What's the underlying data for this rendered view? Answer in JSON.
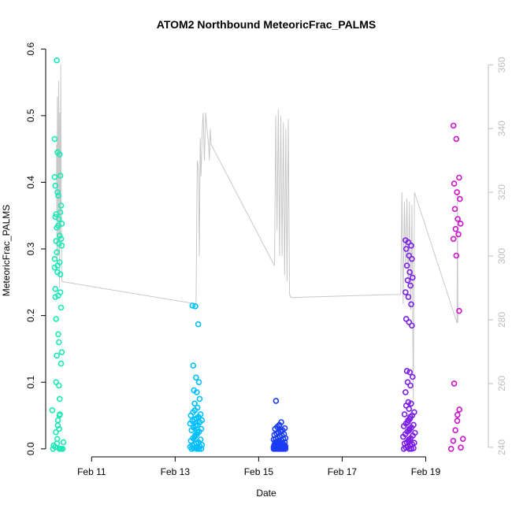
{
  "chart_data": {
    "type": "scatter",
    "title": "ATOM2 Northbound MeteoricFrac_PALMS",
    "xlabel": "Date",
    "ylabel": "MeteoricFrac_PALMS",
    "x_unit": "days (February)",
    "xlim": [
      9.9,
      20.5
    ],
    "ylim": [
      -0.012,
      0.605
    ],
    "x_ticks": [
      {
        "value": 11,
        "label": "Feb 11"
      },
      {
        "value": 13,
        "label": "Feb 13"
      },
      {
        "value": 15,
        "label": "Feb 15"
      },
      {
        "value": 17,
        "label": "Feb 17"
      },
      {
        "value": 19,
        "label": "Feb 19"
      }
    ],
    "y_ticks": [
      0.0,
      0.1,
      0.2,
      0.3,
      0.4,
      0.5,
      0.6
    ],
    "y_tick_labels": [
      "0.0",
      "0.1",
      "0.2",
      "0.3",
      "0.4",
      "0.5",
      "0.6"
    ],
    "secondary_axis": {
      "side": "right",
      "ylim": [
        237,
        366
      ],
      "ticks": [
        240,
        260,
        280,
        300,
        320,
        340,
        360
      ],
      "color": "#bdbdbd"
    },
    "grid": false,
    "legend": "none",
    "series": [
      {
        "color": "#1de9b6",
        "x": [
          10.2,
          10.2,
          10.2,
          10.2,
          10.2,
          10.2,
          10.2,
          10.2,
          10.2,
          10.2,
          10.2,
          10.2,
          10.2,
          10.2,
          10.2,
          10.2,
          10.2,
          10.2,
          10.2,
          10.2,
          10.2,
          10.2,
          10.2,
          10.2,
          10.2,
          10.2,
          10.2,
          10.2,
          10.2,
          10.2,
          10.2,
          10.2,
          10.2,
          10.2,
          10.2,
          10.2,
          10.2,
          10.2,
          10.2,
          10.2,
          10.2,
          10.2,
          10.2,
          10.2,
          10.2,
          10.2,
          10.2,
          10.2,
          10.2,
          10.2,
          10.2,
          10.2,
          10.2,
          10.2,
          10.2,
          10.2,
          10.2,
          10.2,
          10.2,
          10.2
        ],
        "y": [
          0.465,
          0.445,
          0.41,
          0.395,
          0.38,
          0.365,
          0.352,
          0.345,
          0.338,
          0.332,
          0.32,
          0.285,
          0.275,
          0.262,
          0.24,
          0.23,
          0.212,
          0.195,
          0.16,
          0.145,
          0.14,
          0.075,
          0.058,
          0.052,
          0.043,
          0.035,
          0.025,
          0.01,
          0.005,
          0.0,
          0.0,
          0.583,
          0.442,
          0.408,
          0.385,
          0.355,
          0.348,
          0.335,
          0.315,
          0.312,
          0.308,
          0.305,
          0.295,
          0.28,
          0.272,
          0.265,
          0.235,
          0.228,
          0.172,
          0.128,
          0.1,
          0.095,
          0.05,
          0.03,
          0.015,
          0.008,
          0.003,
          0.0,
          0.0,
          0.0
        ]
      },
      {
        "color": "#00bfff",
        "x": [
          13.5,
          13.5,
          13.5,
          13.5,
          13.5,
          13.5,
          13.5,
          13.5,
          13.5,
          13.5,
          13.5,
          13.5,
          13.5,
          13.5,
          13.5,
          13.5,
          13.5,
          13.5,
          13.5,
          13.5,
          13.5,
          13.5,
          13.5,
          13.5,
          13.5,
          13.5,
          13.5,
          13.5,
          13.5,
          13.5,
          13.5,
          13.5,
          13.5,
          13.5,
          13.5,
          13.5,
          13.5,
          13.5,
          13.5,
          13.5,
          13.5,
          13.5,
          13.5,
          13.5,
          13.5,
          13.5,
          13.5,
          13.5,
          13.5,
          13.5,
          13.5,
          13.5,
          13.5,
          13.5
        ],
        "y": [
          0.215,
          0.214,
          0.187,
          0.125,
          0.107,
          0.1,
          0.088,
          0.085,
          0.075,
          0.068,
          0.062,
          0.058,
          0.055,
          0.052,
          0.05,
          0.048,
          0.046,
          0.045,
          0.044,
          0.043,
          0.042,
          0.04,
          0.038,
          0.036,
          0.035,
          0.034,
          0.032,
          0.03,
          0.028,
          0.026,
          0.025,
          0.022,
          0.02,
          0.018,
          0.016,
          0.014,
          0.012,
          0.01,
          0.009,
          0.008,
          0.007,
          0.006,
          0.005,
          0.004,
          0.003,
          0.002,
          0.002,
          0.001,
          0.001,
          0.0,
          0.0,
          0.0,
          0.0,
          0.0
        ]
      },
      {
        "color": "#1a3cf5",
        "x": [
          15.5,
          15.5,
          15.5,
          15.5,
          15.5,
          15.5,
          15.5,
          15.5,
          15.5,
          15.5,
          15.5,
          15.5,
          15.5,
          15.5,
          15.5,
          15.5,
          15.5,
          15.5,
          15.5,
          15.5,
          15.5,
          15.5,
          15.5,
          15.5,
          15.5,
          15.5,
          15.5,
          15.5,
          15.5,
          15.5,
          15.5,
          15.5,
          15.5,
          15.5,
          15.5,
          15.5,
          15.5,
          15.5,
          15.5,
          15.5,
          15.5,
          15.5,
          15.5,
          15.5,
          15.5,
          15.5,
          15.5,
          15.5,
          15.5,
          15.5,
          15.5,
          15.5,
          15.5,
          15.5,
          15.5,
          15.5,
          15.5,
          15.5,
          15.5,
          15.5,
          15.5,
          15.5,
          15.5,
          15.5,
          15.5,
          15.5,
          15.5,
          15.5,
          15.5,
          15.5
        ],
        "y": [
          0.072,
          0.04,
          0.036,
          0.035,
          0.033,
          0.031,
          0.03,
          0.028,
          0.027,
          0.026,
          0.025,
          0.024,
          0.023,
          0.022,
          0.021,
          0.02,
          0.019,
          0.018,
          0.017,
          0.016,
          0.015,
          0.015,
          0.014,
          0.013,
          0.012,
          0.012,
          0.011,
          0.01,
          0.01,
          0.009,
          0.009,
          0.008,
          0.008,
          0.007,
          0.007,
          0.006,
          0.006,
          0.005,
          0.005,
          0.005,
          0.004,
          0.004,
          0.004,
          0.003,
          0.003,
          0.003,
          0.003,
          0.002,
          0.002,
          0.002,
          0.002,
          0.002,
          0.001,
          0.001,
          0.001,
          0.001,
          0.001,
          0.001,
          0.0,
          0.0,
          0.0,
          0.0,
          0.0,
          0.0,
          0.0,
          0.0,
          0.0,
          0.0,
          0.0,
          0.0
        ]
      },
      {
        "color": "#7b1fe8",
        "x": [
          18.6,
          18.6,
          18.6,
          18.6,
          18.6,
          18.6,
          18.6,
          18.6,
          18.6,
          18.6,
          18.6,
          18.6,
          18.6,
          18.6,
          18.6,
          18.6,
          18.6,
          18.6,
          18.6,
          18.6,
          18.6,
          18.6,
          18.6,
          18.6,
          18.6,
          18.6,
          18.6,
          18.6,
          18.6,
          18.6,
          18.6,
          18.6,
          18.6,
          18.6,
          18.6,
          18.6,
          18.6,
          18.6,
          18.6,
          18.6,
          18.6,
          18.6,
          18.6,
          18.6,
          18.6,
          18.6,
          18.6,
          18.6,
          18.6,
          18.6,
          18.6,
          18.6,
          18.6,
          18.6,
          18.6,
          18.6,
          18.6,
          18.6,
          18.6,
          18.6,
          18.6,
          18.6
        ],
        "y": [
          0.313,
          0.31,
          0.305,
          0.3,
          0.29,
          0.285,
          0.275,
          0.265,
          0.257,
          0.253,
          0.245,
          0.235,
          0.228,
          0.217,
          0.195,
          0.19,
          0.185,
          0.117,
          0.115,
          0.108,
          0.1,
          0.095,
          0.085,
          0.07,
          0.068,
          0.065,
          0.06,
          0.055,
          0.052,
          0.05,
          0.048,
          0.045,
          0.043,
          0.04,
          0.038,
          0.036,
          0.034,
          0.032,
          0.03,
          0.028,
          0.026,
          0.024,
          0.022,
          0.02,
          0.018,
          0.016,
          0.014,
          0.012,
          0.01,
          0.009,
          0.008,
          0.007,
          0.006,
          0.005,
          0.004,
          0.003,
          0.002,
          0.001,
          0.0,
          0.0,
          0.0,
          0.0
        ]
      },
      {
        "color": "#cc14cc",
        "x": [
          19.75,
          19.75,
          19.75,
          19.75,
          19.75,
          19.75,
          19.75,
          19.75,
          19.75,
          19.75,
          19.75,
          19.75,
          19.75,
          19.75,
          19.75,
          19.75,
          19.75,
          19.75,
          19.75,
          19.75,
          19.75,
          19.75,
          19.75
        ],
        "y": [
          0.485,
          0.465,
          0.407,
          0.398,
          0.385,
          0.375,
          0.36,
          0.345,
          0.338,
          0.33,
          0.322,
          0.315,
          0.29,
          0.207,
          0.098,
          0.059,
          0.051,
          0.042,
          0.028,
          0.015,
          0.012,
          0.002,
          0.0
        ]
      }
    ],
    "secondary_series": {
      "color": "#c8c8c8",
      "x": [
        10.16,
        10.17,
        10.18,
        10.19,
        10.2,
        10.21,
        10.22,
        10.23,
        10.24,
        10.25,
        10.26,
        10.27,
        10.28,
        10.29,
        13.5,
        13.52,
        13.53,
        13.56,
        13.58,
        13.6,
        13.62,
        13.65,
        13.67,
        13.7,
        13.73,
        13.76,
        13.8,
        13.82,
        13.84,
        13.86,
        15.38,
        15.41,
        15.44,
        15.47,
        15.5,
        15.53,
        15.56,
        15.59,
        15.62,
        15.65,
        15.68,
        15.71,
        15.74,
        15.77,
        18.4,
        18.43,
        18.46,
        18.49,
        18.52,
        18.55,
        18.58,
        18.61,
        18.64,
        18.67,
        18.7,
        18.73,
        19.75,
        19.76,
        19.77
      ],
      "y": [
        335,
        298,
        350,
        330,
        300,
        355,
        338,
        290,
        345,
        305,
        360,
        325,
        295,
        292,
        285,
        315,
        330,
        327,
        300,
        337,
        325,
        340,
        345,
        330,
        345,
        340,
        335,
        330,
        340,
        335,
        297,
        344,
        308,
        346,
        300,
        344,
        300,
        342,
        294,
        340,
        292,
        343,
        288,
        287,
        288,
        320,
        285,
        317,
        296,
        318,
        290,
        317,
        283,
        316,
        255,
        320,
        279,
        320,
        279
      ]
    }
  }
}
